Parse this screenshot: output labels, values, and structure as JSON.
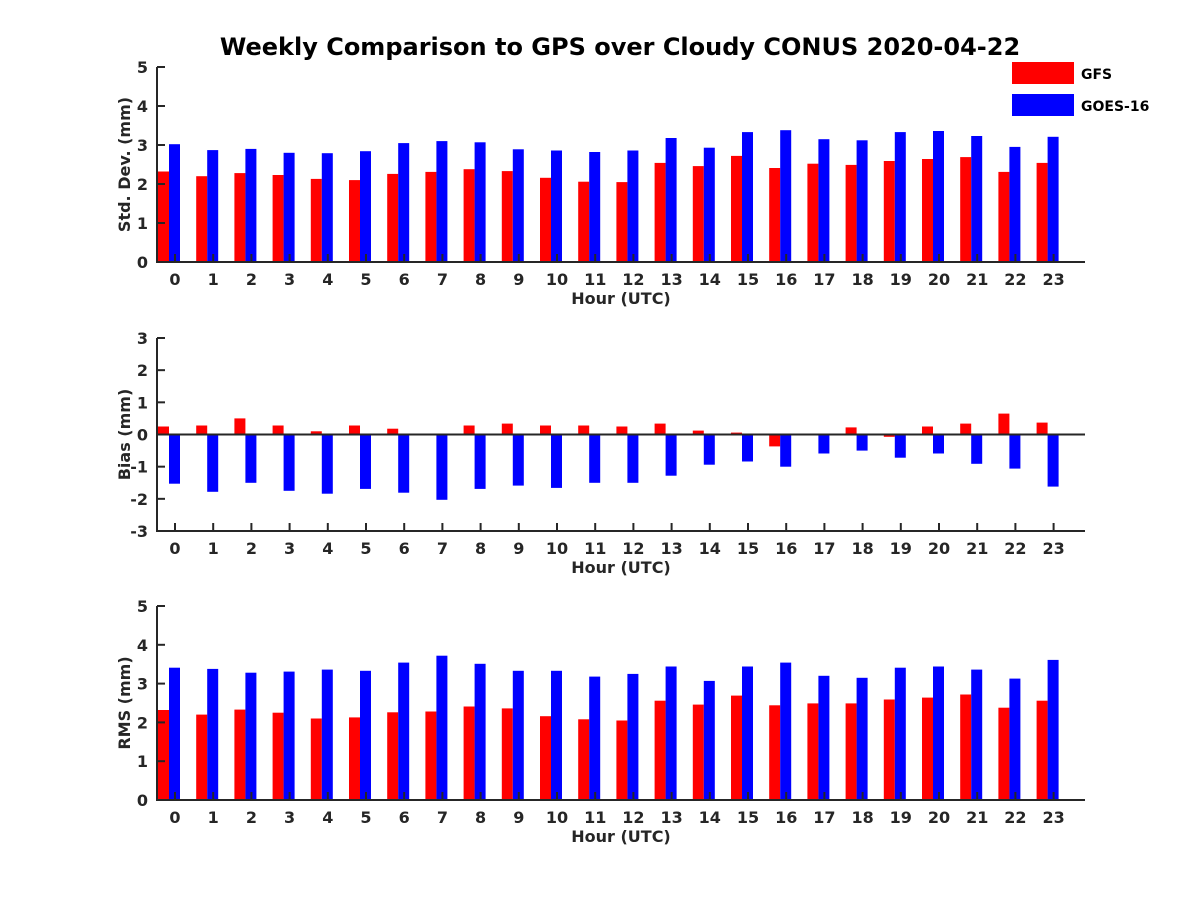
{
  "title": "Weekly Comparison to GPS over Cloudy CONUS 2020-04-22",
  "legend": [
    {
      "name": "GFS",
      "color": "#ff0000"
    },
    {
      "name": "GOES-16",
      "color": "#0000ff"
    }
  ],
  "chart_data": [
    {
      "type": "bar",
      "ylabel": "Std. Dev. (mm)",
      "xlabel": "Hour (UTC)",
      "ylim": [
        0,
        5
      ],
      "yticks": [
        0,
        1,
        2,
        3,
        4,
        5
      ],
      "categories": [
        "0",
        "1",
        "2",
        "3",
        "4",
        "5",
        "6",
        "7",
        "8",
        "9",
        "10",
        "11",
        "12",
        "13",
        "14",
        "15",
        "16",
        "17",
        "18",
        "19",
        "20",
        "21",
        "22",
        "23"
      ],
      "series": [
        {
          "name": "GFS",
          "color": "#ff0000",
          "values": [
            2.32,
            2.2,
            2.28,
            2.23,
            2.13,
            2.1,
            2.26,
            2.31,
            2.38,
            2.33,
            2.16,
            2.06,
            2.05,
            2.54,
            2.46,
            2.72,
            2.41,
            2.52,
            2.49,
            2.59,
            2.64,
            2.69,
            2.31,
            2.54
          ]
        },
        {
          "name": "GOES-16",
          "color": "#0000ff",
          "values": [
            3.02,
            2.87,
            2.9,
            2.8,
            2.79,
            2.84,
            3.05,
            3.1,
            3.07,
            2.89,
            2.86,
            2.82,
            2.86,
            3.18,
            2.93,
            3.33,
            3.38,
            3.15,
            3.12,
            3.33,
            3.36,
            3.23,
            2.95,
            3.21
          ]
        }
      ]
    },
    {
      "type": "bar",
      "ylabel": "Bias (mm)",
      "xlabel": "Hour (UTC)",
      "ylim": [
        -3,
        3
      ],
      "yticks": [
        -3,
        -2,
        -1,
        0,
        1,
        2,
        3
      ],
      "categories": [
        "0",
        "1",
        "2",
        "3",
        "4",
        "5",
        "6",
        "7",
        "8",
        "9",
        "10",
        "11",
        "12",
        "13",
        "14",
        "15",
        "16",
        "17",
        "18",
        "19",
        "20",
        "21",
        "22",
        "23"
      ],
      "series": [
        {
          "name": "GFS",
          "color": "#ff0000",
          "values": [
            0.25,
            0.28,
            0.5,
            0.28,
            0.1,
            0.28,
            0.18,
            0.03,
            0.28,
            0.34,
            0.28,
            0.28,
            0.25,
            0.34,
            0.12,
            0.06,
            -0.37,
            0.0,
            0.22,
            -0.07,
            0.25,
            0.34,
            0.65,
            0.37
          ]
        },
        {
          "name": "GOES-16",
          "color": "#0000ff",
          "values": [
            -1.53,
            -1.78,
            -1.5,
            -1.75,
            -1.84,
            -1.69,
            -1.81,
            -2.03,
            -1.69,
            -1.59,
            -1.66,
            -1.5,
            -1.5,
            -1.28,
            -0.94,
            -0.84,
            -1.0,
            -0.59,
            -0.5,
            -0.72,
            -0.59,
            -0.91,
            -1.06,
            -1.62
          ]
        }
      ]
    },
    {
      "type": "bar",
      "ylabel": "RMS (mm)",
      "xlabel": "Hour (UTC)",
      "ylim": [
        0,
        5
      ],
      "yticks": [
        0,
        1,
        2,
        3,
        4,
        5
      ],
      "categories": [
        "0",
        "1",
        "2",
        "3",
        "4",
        "5",
        "6",
        "7",
        "8",
        "9",
        "10",
        "11",
        "12",
        "13",
        "14",
        "15",
        "16",
        "17",
        "18",
        "19",
        "20",
        "21",
        "22",
        "23"
      ],
      "series": [
        {
          "name": "GFS",
          "color": "#ff0000",
          "values": [
            2.32,
            2.2,
            2.33,
            2.25,
            2.1,
            2.13,
            2.26,
            2.28,
            2.41,
            2.36,
            2.16,
            2.08,
            2.05,
            2.56,
            2.46,
            2.69,
            2.44,
            2.49,
            2.49,
            2.59,
            2.64,
            2.72,
            2.38,
            2.56
          ]
        },
        {
          "name": "GOES-16",
          "color": "#0000ff",
          "values": [
            3.41,
            3.38,
            3.28,
            3.31,
            3.36,
            3.33,
            3.54,
            3.72,
            3.51,
            3.33,
            3.33,
            3.18,
            3.25,
            3.44,
            3.07,
            3.44,
            3.54,
            3.2,
            3.15,
            3.41,
            3.44,
            3.36,
            3.13,
            3.61
          ]
        }
      ]
    }
  ]
}
